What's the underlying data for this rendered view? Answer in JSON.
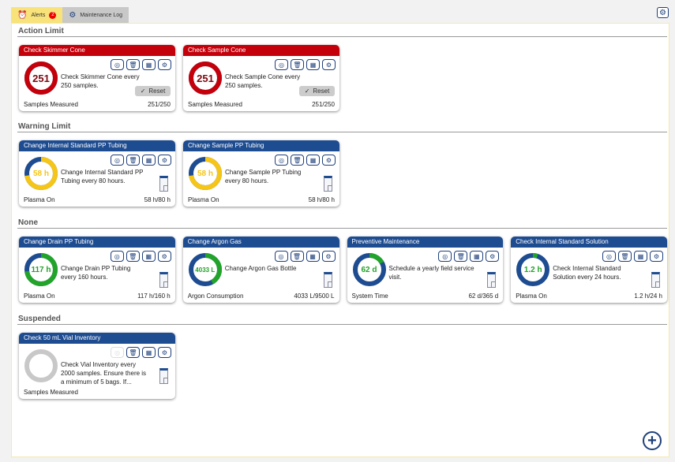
{
  "tabs": [
    {
      "label": "Alerts",
      "icon": "alarm-clock-icon",
      "badge": "2",
      "active": true
    },
    {
      "label": "Maintenance Log",
      "icon": "wrench-log-icon",
      "active": false
    }
  ],
  "colors": {
    "red": "#c4000b",
    "navy": "#1e4c91",
    "yellow": "#f5c518",
    "green": "#22a32a",
    "gray": "#c8c8c8"
  },
  "sections": [
    {
      "title": "Action Limit",
      "cards": [
        {
          "title": "Check Skimmer Cone",
          "theme": "red",
          "ring_label": "251",
          "desc": "Check Skimmer Cone every 250 samples.",
          "footer_left": "Samples Measured",
          "footer_right": "251/250",
          "progress": 1.0,
          "progress_color": "#c4000b",
          "reset_label": "Reset"
        },
        {
          "title": "Check Sample Cone",
          "theme": "red",
          "ring_label": "251",
          "desc": "Check Sample Cone every 250 samples.",
          "footer_left": "Samples Measured",
          "footer_right": "251/250",
          "progress": 1.0,
          "progress_color": "#c4000b",
          "reset_label": "Reset"
        }
      ]
    },
    {
      "title": "Warning Limit",
      "cards": [
        {
          "title": "Change Internal Standard PP Tubing",
          "theme": "blue",
          "ring_label": "58 h",
          "desc": "Change Internal Standard PP Tubing every 80 hours.",
          "footer_left": "Plasma On",
          "footer_right": "58 h/80 h",
          "progress": 0.725,
          "progress_color": "#f5c518"
        },
        {
          "title": "Change Sample PP Tubing",
          "theme": "blue",
          "ring_label": "58 h",
          "desc": "Change Sample PP Tubing every 80 hours.",
          "footer_left": "Plasma On",
          "footer_right": "58 h/80 h",
          "progress": 0.725,
          "progress_color": "#f5c518"
        }
      ]
    },
    {
      "title": "None",
      "cards": [
        {
          "title": "Change Drain PP Tubing",
          "theme": "blue",
          "ring_label": "117 h",
          "desc": "Change Drain PP Tubing every 160 hours.",
          "footer_left": "Plasma On",
          "footer_right": "117 h/160 h",
          "progress": 0.73,
          "progress_color": "#22a32a"
        },
        {
          "title": "Change Argon Gas",
          "theme": "blue",
          "ring_label": "4033 L",
          "desc": "Change Argon Gas Bottle",
          "footer_left": "Argon Consumption",
          "footer_right": "4033 L/9500 L",
          "progress": 0.42,
          "progress_color": "#22a32a"
        },
        {
          "title": "Preventive Maintenance",
          "theme": "blue",
          "ring_label": "62 d",
          "desc": "Schedule a yearly field service visit.",
          "footer_left": "System Time",
          "footer_right": "62 d/365 d",
          "progress": 0.17,
          "progress_color": "#22a32a"
        },
        {
          "title": "Check Internal Standard Solution",
          "theme": "blue",
          "ring_label": "1.2 h",
          "desc": "Check Internal Standard Solution every 24 hours.",
          "footer_left": "Plasma On",
          "footer_right": "1.2 h/24 h",
          "progress": 0.05,
          "progress_color": "#22a32a"
        }
      ]
    },
    {
      "title": "Suspended",
      "cards": [
        {
          "title": "Check 50 mL Vial Inventory",
          "theme": "blue",
          "ring_label": "",
          "desc": "Check Vial Inventory every 2000 samples. Ensure there is a minimum of 5 bags. If...",
          "footer_left": "Samples Measured",
          "footer_right": "",
          "progress": 0,
          "progress_color": "#c8c8c8",
          "suspended": true
        }
      ]
    }
  ]
}
